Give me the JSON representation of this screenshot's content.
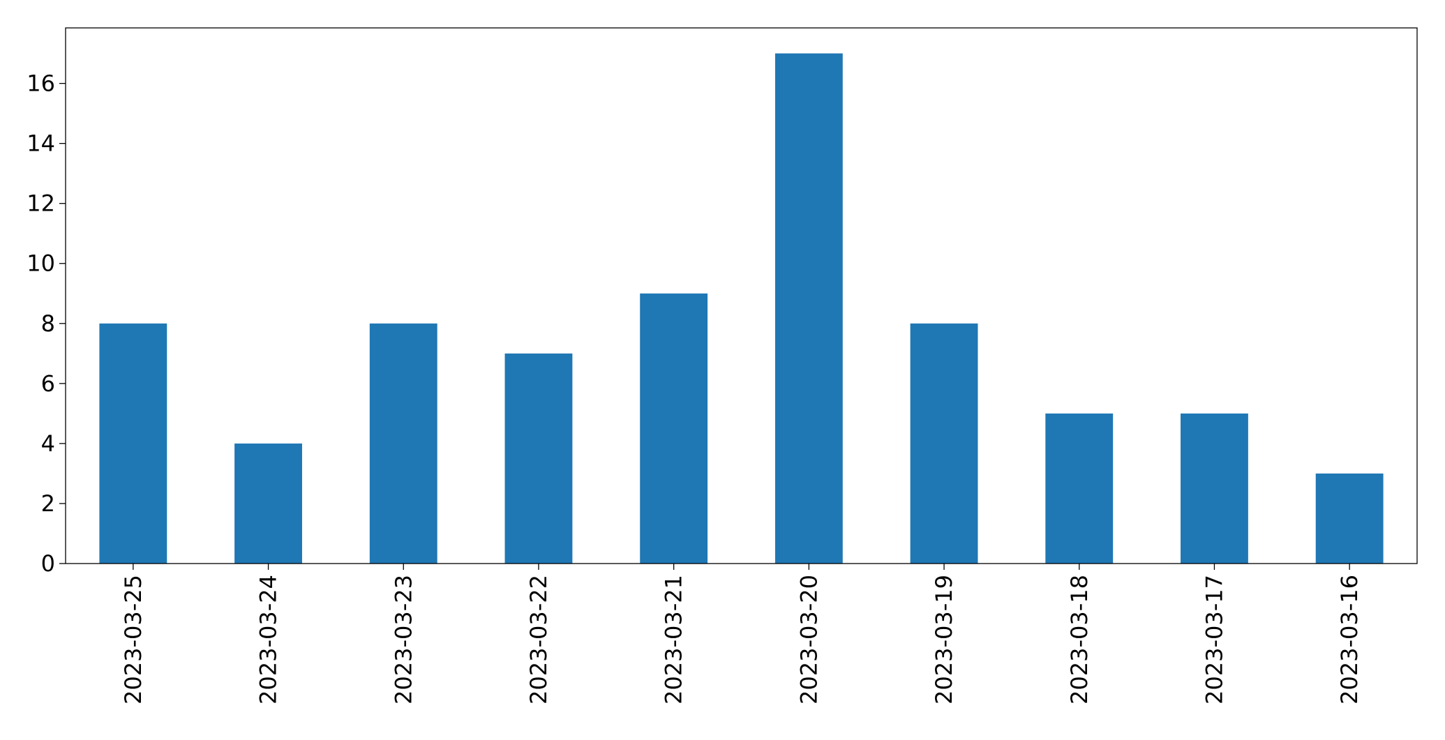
{
  "chart_data": {
    "type": "bar",
    "categories": [
      "2023-03-25",
      "2023-03-24",
      "2023-03-23",
      "2023-03-22",
      "2023-03-21",
      "2023-03-20",
      "2023-03-19",
      "2023-03-18",
      "2023-03-17",
      "2023-03-16"
    ],
    "values": [
      8,
      4,
      8,
      7,
      9,
      17,
      8,
      5,
      5,
      3
    ],
    "color": "#1f77b4",
    "ylim": [
      0,
      17.85
    ],
    "yticks": [
      0,
      2,
      4,
      6,
      8,
      10,
      12,
      14,
      16
    ],
    "grid": false
  }
}
